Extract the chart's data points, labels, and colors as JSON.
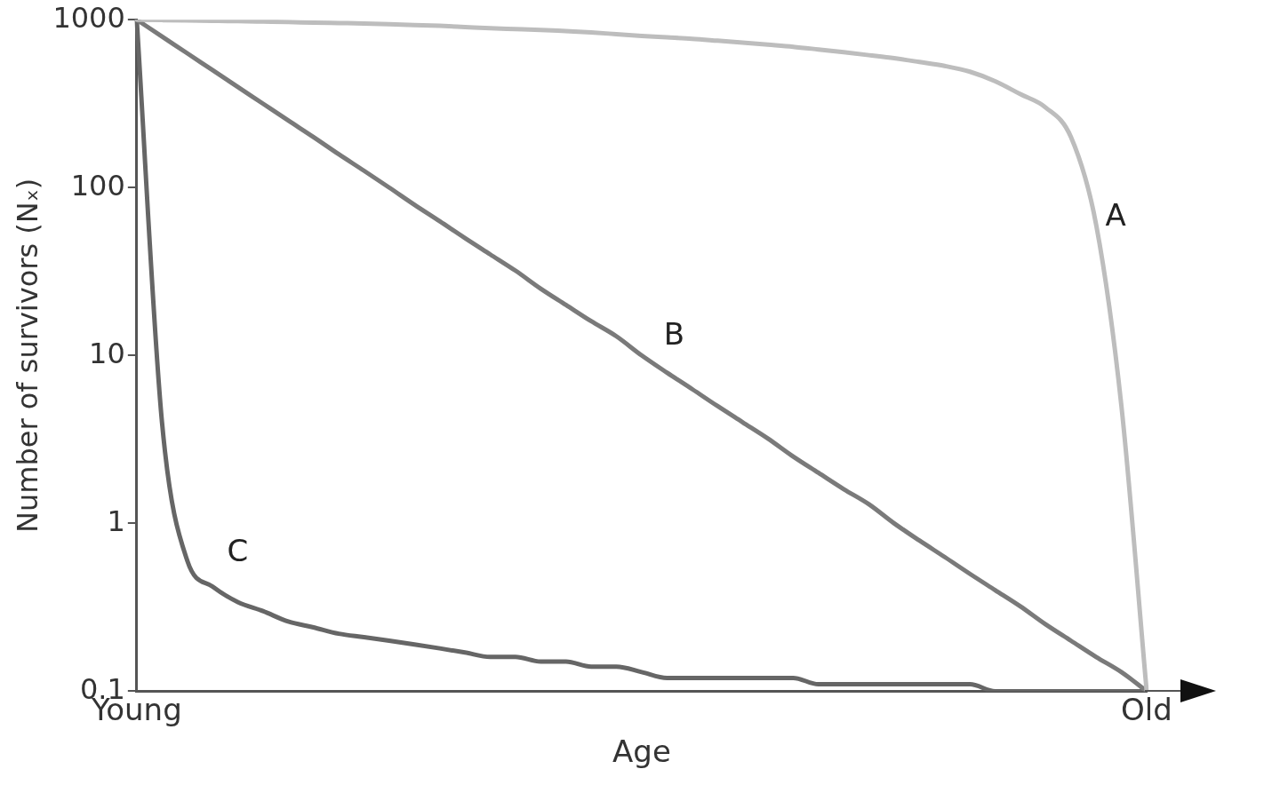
{
  "chart_data": {
    "type": "line",
    "xlabel": "Age",
    "ylabel": "Number of survivors (Nₓ)",
    "categories": [
      "Young",
      null,
      null,
      null,
      null,
      null,
      null,
      null,
      null,
      null,
      null,
      null,
      null,
      null,
      null,
      null,
      null,
      null,
      null,
      null,
      null,
      null,
      null,
      null,
      null,
      null,
      null,
      null,
      null,
      null,
      null,
      null,
      null,
      null,
      null,
      null,
      null,
      null,
      null,
      null,
      "Old"
    ],
    "ylim": [
      0.1,
      1000
    ],
    "yticks": [
      0.1,
      1,
      10,
      100,
      1000
    ],
    "log": true,
    "grid": false,
    "legend": false,
    "marker": "none",
    "line_style": "solid",
    "series": [
      {
        "name": "A",
        "color": "#bdbdbd",
        "values": [
          1000,
          995,
          990,
          985,
          980,
          975,
          970,
          960,
          955,
          950,
          940,
          930,
          920,
          905,
          890,
          880,
          870,
          855,
          840,
          820,
          800,
          785,
          770,
          750,
          730,
          710,
          690,
          665,
          640,
          615,
          590,
          560,
          530,
          490,
          430,
          360,
          300,
          200,
          60,
          5,
          0.1
        ]
      },
      {
        "name": "B",
        "color": "#7a7a7a",
        "values": [
          1000,
          794,
          631,
          501,
          398,
          316,
          251,
          200,
          158,
          126,
          100,
          79,
          63,
          50,
          40,
          32,
          25,
          20,
          16,
          13,
          10,
          7.9,
          6.3,
          5,
          4,
          3.2,
          2.5,
          2,
          1.6,
          1.3,
          1,
          0.79,
          0.63,
          0.5,
          0.4,
          0.32,
          0.25,
          0.2,
          0.16,
          0.13,
          0.1
        ]
      },
      {
        "name": "C",
        "color": "#666666",
        "values": [
          1000,
          4,
          0.6,
          0.42,
          0.34,
          0.3,
          0.26,
          0.24,
          0.22,
          0.21,
          0.2,
          0.19,
          0.18,
          0.17,
          0.16,
          0.16,
          0.15,
          0.15,
          0.14,
          0.14,
          0.13,
          0.12,
          0.12,
          0.12,
          0.12,
          0.12,
          0.12,
          0.11,
          0.11,
          0.11,
          0.11,
          0.11,
          0.11,
          0.11,
          0.1,
          0.1,
          0.1,
          0.1,
          0.1,
          0.1,
          0.1
        ]
      }
    ]
  }
}
